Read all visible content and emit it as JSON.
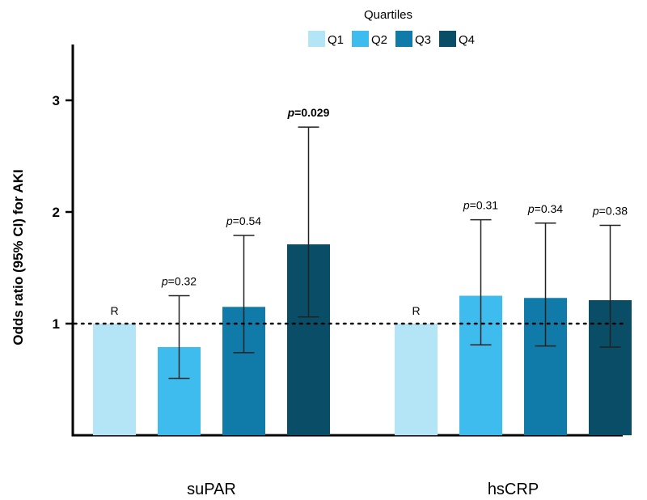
{
  "chart_data": {
    "type": "bar",
    "ylabel": "Odds ratio (95% CI) for AKI",
    "ylim": [
      0,
      3.5
    ],
    "yticks": [
      1,
      2,
      3
    ],
    "reference_line": 1,
    "legend": {
      "title": "Quartiles",
      "position": "top",
      "entries": [
        "Q1",
        "Q2",
        "Q3",
        "Q4"
      ]
    },
    "colors": [
      "#b3e5f6",
      "#3fbcee",
      "#107aa8",
      "#0a4d66"
    ],
    "groups": [
      {
        "label": "suPAR",
        "bars": [
          {
            "series": "Q1",
            "value": 1.0,
            "ci_low": null,
            "ci_high": null,
            "annotation": "R",
            "p_value": "",
            "bold": false
          },
          {
            "series": "Q2",
            "value": 0.79,
            "ci_low": 0.51,
            "ci_high": 1.25,
            "annotation": "",
            "p_value": "=0.32",
            "bold": false
          },
          {
            "series": "Q3",
            "value": 1.15,
            "ci_low": 0.74,
            "ci_high": 1.79,
            "annotation": "",
            "p_value": "=0.54",
            "bold": false
          },
          {
            "series": "Q4",
            "value": 1.71,
            "ci_low": 1.06,
            "ci_high": 2.76,
            "annotation": "",
            "p_value": "=0.029",
            "bold": true
          }
        ]
      },
      {
        "label": "hsCRP",
        "bars": [
          {
            "series": "Q1",
            "value": 1.0,
            "ci_low": null,
            "ci_high": null,
            "annotation": "R",
            "p_value": "",
            "bold": false
          },
          {
            "series": "Q2",
            "value": 1.25,
            "ci_low": 0.81,
            "ci_high": 1.93,
            "annotation": "",
            "p_value": "=0.31",
            "bold": false
          },
          {
            "series": "Q3",
            "value": 1.23,
            "ci_low": 0.8,
            "ci_high": 1.9,
            "annotation": "",
            "p_value": "=0.34",
            "bold": false
          },
          {
            "series": "Q4",
            "value": 1.21,
            "ci_low": 0.79,
            "ci_high": 1.88,
            "annotation": "",
            "p_value": "=0.38",
            "bold": false
          }
        ]
      }
    ],
    "p_prefix": "p"
  }
}
